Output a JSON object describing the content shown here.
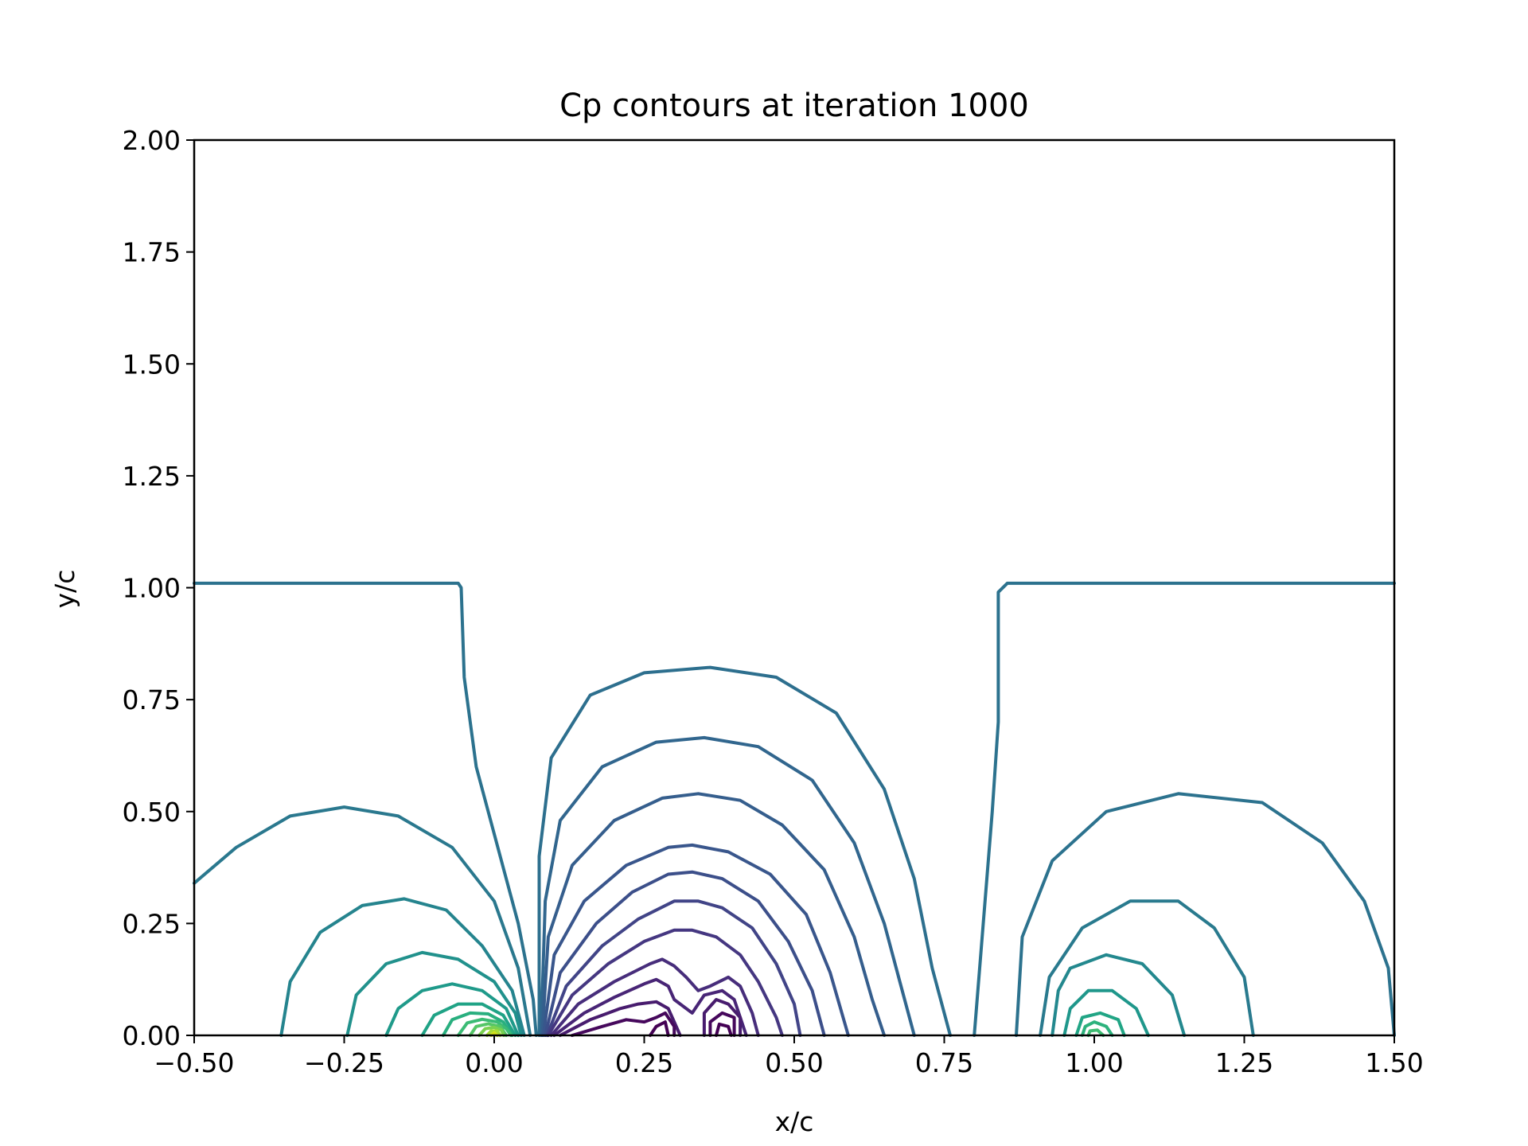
{
  "chart_data": {
    "type": "contour",
    "title": "Cp contours at iteration 1000",
    "xlabel": "x/c",
    "ylabel": "y/c",
    "xlim": [
      -0.5,
      1.5
    ],
    "ylim": [
      0.0,
      2.0
    ],
    "x_ticks": [
      "−0.50",
      "−0.25",
      "0.00",
      "0.25",
      "0.50",
      "0.75",
      "1.00",
      "1.25",
      "1.50"
    ],
    "y_ticks": [
      "0.00",
      "0.25",
      "0.50",
      "0.75",
      "1.00",
      "1.25",
      "1.50",
      "1.75",
      "2.00"
    ],
    "colormap": "viridis",
    "grid": false,
    "series": [
      {
        "color": "#2c728e",
        "points": [
          [
            -0.5,
            1.01
          ],
          [
            -0.06,
            1.01
          ],
          [
            -0.055,
            1.0
          ],
          [
            -0.05,
            0.8
          ],
          [
            -0.03,
            0.6
          ],
          [
            0.0,
            0.45
          ],
          [
            0.04,
            0.25
          ],
          [
            0.065,
            0.08
          ],
          [
            0.07,
            0.0
          ]
        ]
      },
      {
        "color": "#2c728e",
        "points": [
          [
            0.8,
            0.0
          ],
          [
            0.815,
            0.25
          ],
          [
            0.83,
            0.5
          ],
          [
            0.84,
            0.7
          ],
          [
            0.84,
            0.99
          ],
          [
            0.855,
            1.01
          ],
          [
            1.5,
            1.01
          ]
        ]
      },
      {
        "color": "#2d6f8e",
        "points": [
          [
            0.075,
            0.0
          ],
          [
            0.075,
            0.4
          ],
          [
            0.095,
            0.62
          ],
          [
            0.16,
            0.76
          ],
          [
            0.25,
            0.81
          ],
          [
            0.36,
            0.822
          ],
          [
            0.47,
            0.8
          ],
          [
            0.57,
            0.72
          ],
          [
            0.65,
            0.55
          ],
          [
            0.7,
            0.35
          ],
          [
            0.73,
            0.15
          ],
          [
            0.76,
            0.0
          ]
        ]
      },
      {
        "color": "#31668e",
        "points": [
          [
            0.078,
            0.0
          ],
          [
            0.085,
            0.3
          ],
          [
            0.11,
            0.48
          ],
          [
            0.18,
            0.6
          ],
          [
            0.27,
            0.655
          ],
          [
            0.35,
            0.665
          ],
          [
            0.44,
            0.645
          ],
          [
            0.53,
            0.57
          ],
          [
            0.6,
            0.43
          ],
          [
            0.65,
            0.25
          ],
          [
            0.68,
            0.1
          ],
          [
            0.7,
            0.0
          ]
        ]
      },
      {
        "color": "#355e8d",
        "points": [
          [
            0.08,
            0.0
          ],
          [
            0.09,
            0.22
          ],
          [
            0.13,
            0.38
          ],
          [
            0.2,
            0.48
          ],
          [
            0.28,
            0.53
          ],
          [
            0.34,
            0.54
          ],
          [
            0.41,
            0.525
          ],
          [
            0.48,
            0.47
          ],
          [
            0.55,
            0.37
          ],
          [
            0.6,
            0.22
          ],
          [
            0.63,
            0.08
          ],
          [
            0.65,
            0.0
          ]
        ]
      },
      {
        "color": "#39568c",
        "points": [
          [
            0.082,
            0.0
          ],
          [
            0.1,
            0.18
          ],
          [
            0.15,
            0.3
          ],
          [
            0.22,
            0.38
          ],
          [
            0.29,
            0.42
          ],
          [
            0.33,
            0.425
          ],
          [
            0.39,
            0.41
          ],
          [
            0.46,
            0.36
          ],
          [
            0.52,
            0.27
          ],
          [
            0.56,
            0.14
          ],
          [
            0.59,
            0.0
          ]
        ]
      },
      {
        "color": "#3c4f8a",
        "points": [
          [
            0.085,
            0.0
          ],
          [
            0.11,
            0.14
          ],
          [
            0.17,
            0.25
          ],
          [
            0.23,
            0.32
          ],
          [
            0.29,
            0.36
          ],
          [
            0.33,
            0.365
          ],
          [
            0.38,
            0.35
          ],
          [
            0.44,
            0.3
          ],
          [
            0.49,
            0.21
          ],
          [
            0.53,
            0.1
          ],
          [
            0.55,
            0.0
          ]
        ]
      },
      {
        "color": "#414487",
        "points": [
          [
            0.088,
            0.0
          ],
          [
            0.12,
            0.11
          ],
          [
            0.18,
            0.2
          ],
          [
            0.24,
            0.26
          ],
          [
            0.3,
            0.3
          ],
          [
            0.34,
            0.3
          ],
          [
            0.38,
            0.285
          ],
          [
            0.43,
            0.24
          ],
          [
            0.47,
            0.16
          ],
          [
            0.5,
            0.07
          ],
          [
            0.51,
            0.0
          ]
        ]
      },
      {
        "color": "#453781",
        "points": [
          [
            0.09,
            0.0
          ],
          [
            0.13,
            0.09
          ],
          [
            0.19,
            0.16
          ],
          [
            0.25,
            0.21
          ],
          [
            0.3,
            0.235
          ],
          [
            0.33,
            0.235
          ],
          [
            0.37,
            0.22
          ],
          [
            0.41,
            0.18
          ],
          [
            0.44,
            0.12
          ],
          [
            0.47,
            0.04
          ],
          [
            0.48,
            0.0
          ]
        ]
      },
      {
        "color": "#472d7b",
        "points": [
          [
            0.095,
            0.0
          ],
          [
            0.14,
            0.07
          ],
          [
            0.2,
            0.12
          ],
          [
            0.26,
            0.16
          ],
          [
            0.28,
            0.17
          ],
          [
            0.3,
            0.155
          ],
          [
            0.32,
            0.13
          ],
          [
            0.34,
            0.1
          ],
          [
            0.36,
            0.11
          ],
          [
            0.39,
            0.13
          ],
          [
            0.41,
            0.11
          ],
          [
            0.43,
            0.05
          ],
          [
            0.44,
            0.0
          ]
        ]
      },
      {
        "color": "#482576",
        "points": [
          [
            0.1,
            0.0
          ],
          [
            0.15,
            0.05
          ],
          [
            0.2,
            0.085
          ],
          [
            0.25,
            0.115
          ],
          [
            0.27,
            0.125
          ],
          [
            0.29,
            0.11
          ],
          [
            0.3,
            0.08
          ],
          [
            0.33,
            0.05
          ],
          [
            0.35,
            0.09
          ],
          [
            0.38,
            0.1
          ],
          [
            0.4,
            0.08
          ],
          [
            0.42,
            0.0
          ]
        ]
      },
      {
        "color": "#481c6e",
        "points": [
          [
            0.11,
            0.0
          ],
          [
            0.16,
            0.035
          ],
          [
            0.21,
            0.06
          ],
          [
            0.24,
            0.07
          ],
          [
            0.27,
            0.075
          ],
          [
            0.29,
            0.06
          ],
          [
            0.3,
            0.03
          ],
          [
            0.31,
            0.0
          ]
        ]
      },
      {
        "color": "#481c6e",
        "points": [
          [
            0.35,
            0.0
          ],
          [
            0.35,
            0.05
          ],
          [
            0.37,
            0.08
          ],
          [
            0.39,
            0.07
          ],
          [
            0.41,
            0.04
          ],
          [
            0.41,
            0.0
          ]
        ]
      },
      {
        "color": "#46085c",
        "points": [
          [
            0.13,
            0.0
          ],
          [
            0.18,
            0.02
          ],
          [
            0.22,
            0.035
          ],
          [
            0.25,
            0.03
          ],
          [
            0.27,
            0.04
          ],
          [
            0.285,
            0.05
          ],
          [
            0.3,
            0.02
          ],
          [
            0.3,
            0.0
          ]
        ]
      },
      {
        "color": "#46085c",
        "points": [
          [
            0.36,
            0.0
          ],
          [
            0.36,
            0.03
          ],
          [
            0.38,
            0.05
          ],
          [
            0.4,
            0.04
          ],
          [
            0.4,
            0.0
          ]
        ]
      },
      {
        "color": "#440154",
        "points": [
          [
            0.26,
            0.0
          ],
          [
            0.27,
            0.02
          ],
          [
            0.285,
            0.03
          ],
          [
            0.29,
            0.0
          ]
        ]
      },
      {
        "color": "#440154",
        "points": [
          [
            0.37,
            0.0
          ],
          [
            0.375,
            0.025
          ],
          [
            0.39,
            0.02
          ],
          [
            0.395,
            0.0
          ]
        ]
      },
      {
        "color": "#2a788e",
        "points": [
          [
            -0.5,
            0.34
          ],
          [
            -0.43,
            0.42
          ],
          [
            -0.34,
            0.49
          ],
          [
            -0.25,
            0.51
          ],
          [
            -0.16,
            0.49
          ],
          [
            -0.07,
            0.42
          ],
          [
            0.0,
            0.3
          ],
          [
            0.04,
            0.15
          ],
          [
            0.06,
            0.0
          ]
        ]
      },
      {
        "color": "#25848e",
        "points": [
          [
            -0.355,
            0.0
          ],
          [
            -0.34,
            0.12
          ],
          [
            -0.29,
            0.23
          ],
          [
            -0.22,
            0.29
          ],
          [
            -0.15,
            0.305
          ],
          [
            -0.08,
            0.28
          ],
          [
            -0.02,
            0.2
          ],
          [
            0.03,
            0.1
          ],
          [
            0.05,
            0.0
          ]
        ]
      },
      {
        "color": "#21918c",
        "points": [
          [
            -0.245,
            0.0
          ],
          [
            -0.23,
            0.09
          ],
          [
            -0.18,
            0.16
          ],
          [
            -0.12,
            0.185
          ],
          [
            -0.06,
            0.17
          ],
          [
            0.0,
            0.12
          ],
          [
            0.035,
            0.05
          ],
          [
            0.045,
            0.0
          ]
        ]
      },
      {
        "color": "#1f9a8a",
        "points": [
          [
            -0.18,
            0.0
          ],
          [
            -0.16,
            0.06
          ],
          [
            -0.12,
            0.1
          ],
          [
            -0.07,
            0.115
          ],
          [
            -0.02,
            0.1
          ],
          [
            0.02,
            0.06
          ],
          [
            0.04,
            0.0
          ]
        ]
      },
      {
        "color": "#20a386",
        "points": [
          [
            -0.12,
            0.0
          ],
          [
            -0.1,
            0.045
          ],
          [
            -0.06,
            0.07
          ],
          [
            -0.02,
            0.07
          ],
          [
            0.015,
            0.045
          ],
          [
            0.035,
            0.0
          ]
        ]
      },
      {
        "color": "#29af7f",
        "points": [
          [
            -0.085,
            0.0
          ],
          [
            -0.07,
            0.035
          ],
          [
            -0.04,
            0.05
          ],
          [
            -0.01,
            0.048
          ],
          [
            0.015,
            0.03
          ],
          [
            0.03,
            0.0
          ]
        ]
      },
      {
        "color": "#3bbb75",
        "points": [
          [
            -0.06,
            0.0
          ],
          [
            -0.045,
            0.028
          ],
          [
            -0.02,
            0.036
          ],
          [
            0.005,
            0.03
          ],
          [
            0.02,
            0.015
          ],
          [
            0.028,
            0.0
          ]
        ]
      },
      {
        "color": "#55c667",
        "points": [
          [
            -0.04,
            0.0
          ],
          [
            -0.03,
            0.02
          ],
          [
            -0.01,
            0.026
          ],
          [
            0.01,
            0.02
          ],
          [
            0.02,
            0.0
          ]
        ]
      },
      {
        "color": "#7ad151",
        "points": [
          [
            -0.025,
            0.0
          ],
          [
            -0.015,
            0.015
          ],
          [
            0.0,
            0.018
          ],
          [
            0.012,
            0.012
          ],
          [
            0.016,
            0.0
          ]
        ]
      },
      {
        "color": "#a5db36",
        "points": [
          [
            -0.012,
            0.0
          ],
          [
            -0.005,
            0.01
          ],
          [
            0.005,
            0.01
          ],
          [
            0.01,
            0.0
          ]
        ]
      },
      {
        "color": "#d2e21b",
        "points": [
          [
            -0.005,
            0.0
          ],
          [
            0.0,
            0.006
          ],
          [
            0.005,
            0.0
          ]
        ]
      },
      {
        "color": "#2c728e",
        "points": [
          [
            1.5,
            0.0
          ],
          [
            1.49,
            0.15
          ],
          [
            1.45,
            0.3
          ],
          [
            1.38,
            0.43
          ],
          [
            1.28,
            0.52
          ],
          [
            1.14,
            0.54
          ],
          [
            1.02,
            0.5
          ],
          [
            0.93,
            0.39
          ],
          [
            0.88,
            0.22
          ],
          [
            0.87,
            0.0
          ]
        ]
      },
      {
        "color": "#297a8e",
        "points": [
          [
            1.265,
            0.0
          ],
          [
            1.25,
            0.13
          ],
          [
            1.2,
            0.24
          ],
          [
            1.14,
            0.3
          ],
          [
            1.06,
            0.3
          ],
          [
            0.98,
            0.24
          ],
          [
            0.925,
            0.13
          ],
          [
            0.91,
            0.0
          ]
        ]
      },
      {
        "color": "#23888e",
        "points": [
          [
            1.15,
            0.0
          ],
          [
            1.13,
            0.09
          ],
          [
            1.08,
            0.16
          ],
          [
            1.02,
            0.18
          ],
          [
            0.96,
            0.15
          ],
          [
            0.94,
            0.1
          ],
          [
            0.93,
            0.0
          ]
        ]
      },
      {
        "color": "#1f978b",
        "points": [
          [
            1.09,
            0.0
          ],
          [
            1.07,
            0.06
          ],
          [
            1.03,
            0.1
          ],
          [
            0.99,
            0.1
          ],
          [
            0.96,
            0.06
          ],
          [
            0.95,
            0.0
          ]
        ]
      },
      {
        "color": "#21a585",
        "points": [
          [
            1.05,
            0.0
          ],
          [
            1.04,
            0.035
          ],
          [
            1.01,
            0.05
          ],
          [
            0.98,
            0.04
          ],
          [
            0.97,
            0.0
          ]
        ]
      },
      {
        "color": "#2db27d",
        "points": [
          [
            1.03,
            0.0
          ],
          [
            1.02,
            0.02
          ],
          [
            1.0,
            0.03
          ],
          [
            0.985,
            0.02
          ],
          [
            0.98,
            0.0
          ]
        ]
      },
      {
        "color": "#3fbc73",
        "points": [
          [
            1.015,
            0.0
          ],
          [
            1.005,
            0.012
          ],
          [
            0.993,
            0.01
          ],
          [
            0.99,
            0.0
          ]
        ]
      }
    ]
  }
}
